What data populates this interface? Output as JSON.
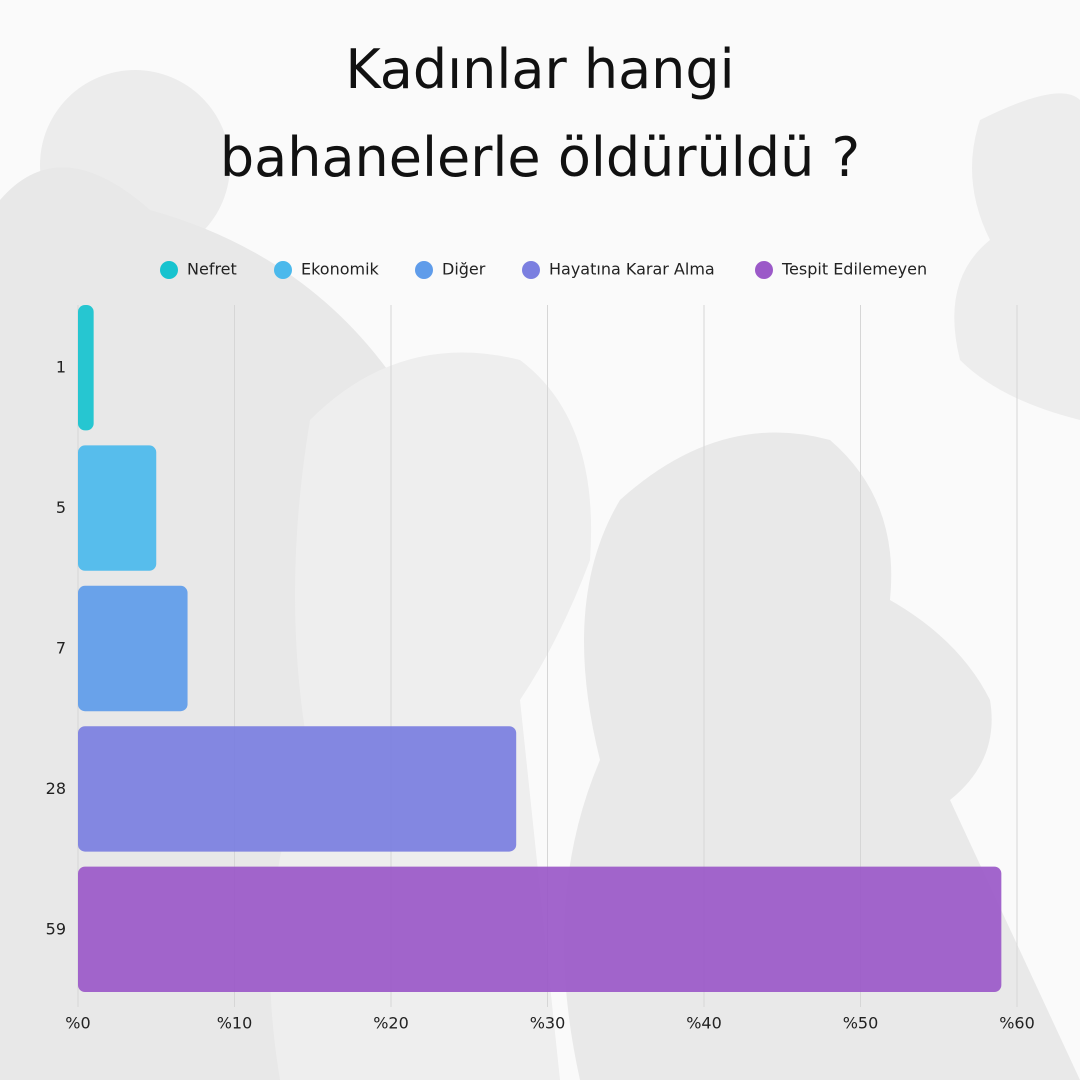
{
  "chart_data": {
    "type": "hbar",
    "title": "Kadınlar hangi bahanelerle öldürüldü ?",
    "categories": [
      "1",
      "5",
      "7",
      "28",
      "59"
    ],
    "series": [
      {
        "name": "Nefret",
        "color": "#17c3cf",
        "values": [
          1,
          null,
          null,
          null,
          null
        ]
      },
      {
        "name": "Ekonomik",
        "color": "#4bb9ec",
        "values": [
          null,
          5,
          null,
          null,
          null
        ]
      },
      {
        "name": "Diğer",
        "color": "#5f9cea",
        "values": [
          null,
          null,
          7,
          null,
          null
        ]
      },
      {
        "name": "Hayatına Karar Alma",
        "color": "#7b7fe0",
        "values": [
          null,
          null,
          null,
          28,
          null
        ]
      },
      {
        "name": "Tespit Edilemeyen",
        "color": "#9b59c8",
        "values": [
          null,
          null,
          null,
          null,
          59
        ]
      }
    ],
    "xlim": [
      0,
      60
    ],
    "xticks": [
      {
        "value": 0,
        "label": "%0"
      },
      {
        "value": 10,
        "label": "%10"
      },
      {
        "value": 20,
        "label": "%20"
      },
      {
        "value": 30,
        "label": "%30"
      },
      {
        "value": 40,
        "label": "%40"
      },
      {
        "value": 50,
        "label": "%50"
      },
      {
        "value": 60,
        "label": "%60"
      }
    ],
    "grid": true,
    "legend": "top"
  }
}
